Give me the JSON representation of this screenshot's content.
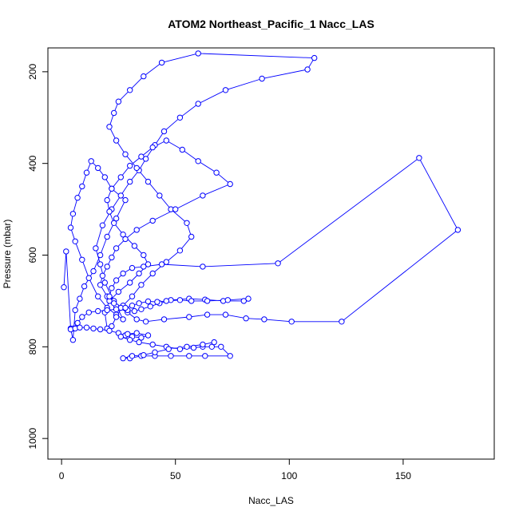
{
  "chart_data": {
    "type": "line",
    "title": "ATOM2 Northeast_Pacific_1 Nacc_LAS",
    "xlabel": "Nacc_LAS",
    "ylabel": "Pressure (mbar)",
    "xlim": [
      -6,
      190
    ],
    "ylim": [
      1045,
      148
    ],
    "y_reversed": true,
    "x_ticks": [
      0,
      50,
      100,
      150
    ],
    "y_ticks": [
      200,
      400,
      600,
      800,
      1000
    ],
    "grid": false,
    "legend": "none",
    "marker": "open-circle",
    "color": "#0000ff",
    "series": [
      {
        "x": [
          1,
          2,
          4,
          5,
          6,
          8,
          10,
          14,
          17,
          20,
          24,
          28,
          22,
          19,
          16,
          13,
          11,
          9,
          7,
          5,
          4,
          6,
          9,
          12,
          16,
          20,
          24,
          27,
          23,
          19,
          17,
          15,
          18,
          22,
          26,
          30,
          34,
          37,
          41,
          45,
          52,
          60,
          72,
          88,
          108,
          111,
          60,
          44,
          36,
          30,
          25,
          23,
          21,
          24,
          28,
          33,
          38,
          43,
          48,
          55,
          57,
          52,
          46,
          40,
          35,
          31,
          27,
          24,
          22,
          20,
          19,
          21,
          25,
          30,
          34,
          38,
          36,
          32,
          27,
          23,
          21,
          20,
          22,
          26,
          30,
          35,
          40,
          46,
          53,
          60,
          68,
          74,
          62,
          50,
          40,
          33,
          28,
          24,
          22,
          20,
          18,
          17,
          20,
          24,
          29,
          33,
          37,
          45,
          56,
          64,
          72,
          81,
          89,
          101,
          123,
          174,
          157,
          95,
          62,
          44,
          36,
          31,
          27,
          24,
          22,
          21,
          23,
          26,
          29,
          32,
          35,
          39,
          43,
          48,
          56,
          63,
          71,
          80,
          82,
          73,
          64,
          57,
          52,
          46,
          42,
          38,
          34,
          31,
          28,
          24,
          20,
          16,
          12,
          9,
          7,
          5,
          4,
          6,
          8,
          11,
          14,
          17,
          21,
          25,
          28,
          31,
          35,
          38,
          33,
          29,
          26,
          30,
          34,
          40,
          46,
          52,
          58,
          62,
          66,
          70,
          74,
          63,
          56,
          48,
          41,
          35,
          30,
          27,
          31,
          36,
          41,
          47,
          55,
          62,
          67
        ],
        "y": [
          670,
          592,
          760,
          785,
          720,
          695,
          668,
          635,
          600,
          560,
          520,
          480,
          455,
          430,
          410,
          395,
          420,
          450,
          475,
          510,
          540,
          570,
          610,
          650,
          690,
          715,
          730,
          740,
          700,
          660,
          620,
          585,
          535,
          500,
          470,
          440,
          415,
          390,
          360,
          330,
          300,
          270,
          240,
          215,
          195,
          170,
          160,
          180,
          210,
          240,
          265,
          290,
          320,
          350,
          380,
          410,
          440,
          470,
          500,
          530,
          560,
          590,
          615,
          640,
          665,
          690,
          710,
          735,
          755,
          760,
          725,
          700,
          680,
          660,
          640,
          620,
          600,
          580,
          555,
          530,
          505,
          480,
          455,
          430,
          405,
          385,
          365,
          350,
          370,
          395,
          420,
          445,
          470,
          500,
          525,
          545,
          565,
          585,
          605,
          625,
          645,
          665,
          690,
          712,
          725,
          740,
          745,
          740,
          735,
          730,
          730,
          738,
          740,
          745,
          745,
          545,
          388,
          618,
          625,
          620,
          625,
          628,
          640,
          655,
          672,
          690,
          705,
          715,
          720,
          722,
          718,
          712,
          705,
          698,
          695,
          697,
          700,
          700,
          695,
          698,
          700,
          700,
          698,
          700,
          702,
          701,
          705,
          710,
          715,
          718,
          720,
          722,
          725,
          735,
          748,
          760,
          762,
          760,
          758,
          758,
          760,
          762,
          765,
          770,
          775,
          778,
          780,
          775,
          770,
          772,
          778,
          785,
          790,
          795,
          800,
          805,
          802,
          800,
          800,
          800,
          820,
          820,
          820,
          820,
          820,
          820,
          825,
          825,
          820,
          818,
          812,
          805,
          800,
          795,
          790
        ]
      }
    ]
  }
}
